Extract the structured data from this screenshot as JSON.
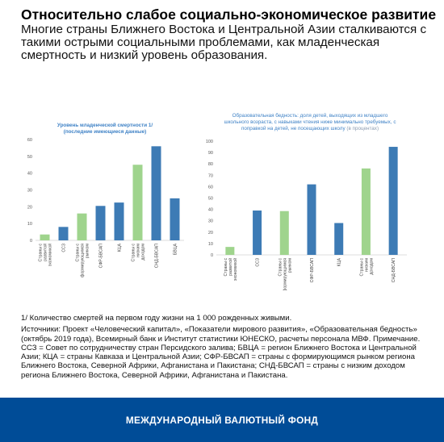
{
  "title": "Относительно слабое социально-экономическое развитие",
  "subtitle": "Многие страны Ближнего Востока и Центральной Азии сталкиваются с такими острыми социальными проблемами, как младенческая смертность и низкий уровень образования.",
  "colors": {
    "blue": "#3d7bb5",
    "green": "#9fd48d",
    "footer_bg": "#004c97",
    "chart_title": "#3f82c6"
  },
  "chart_data": [
    {
      "type": "bar",
      "title_lines": [
        "Уровень младенческой смертности 1/",
        "(последние имеющиеся данные)"
      ],
      "categories": [
        "Страны с развитой экономикой",
        "ССЗ",
        "Страны с формирующимся рынком",
        "СФР-БВСАП",
        "КЦА",
        "Страны с низким доходом",
        "СНД-БВСАП",
        "БВЦА"
      ],
      "values": [
        3.5,
        8,
        16,
        20.5,
        22.5,
        45,
        56,
        25
      ],
      "bar_colors": [
        "green",
        "blue",
        "green",
        "blue",
        "blue",
        "green",
        "blue",
        "blue"
      ],
      "yticks": [
        0,
        10,
        20,
        30,
        40,
        50,
        60
      ],
      "ylim": [
        0,
        60
      ],
      "xlabel": "",
      "ylabel": ""
    },
    {
      "type": "bar",
      "title_lines": [
        "Образовательная бедность: доля детей, выходящих из младшего",
        "школьного возраста, с навыками чтения ниже минимально требуемых, с",
        "поправкой на детей, не посещающих школу"
      ],
      "title_suffix": "(в процентах)",
      "categories": [
        "Страны с развитой экономикой",
        "ССЗ",
        "Страны с формирующимся рынком",
        "СФР-БВСАП",
        "КЦА",
        "Страны с низким доходом",
        "СНД-БВСАП"
      ],
      "values": [
        7,
        39,
        38.5,
        62,
        28,
        76,
        95
      ],
      "bar_colors": [
        "green",
        "blue",
        "green",
        "blue",
        "blue",
        "green",
        "blue"
      ],
      "yticks": [
        0,
        10,
        20,
        30,
        40,
        50,
        60,
        70,
        80,
        90,
        100
      ],
      "ylim": [
        0,
        100
      ],
      "xlabel": "",
      "ylabel": ""
    }
  ],
  "footnote": "1/ Количество смертей на первом году жизни на 1 000 рожденных живыми.",
  "sources": "Источники: Проект «Человеческий капитал», «Показатели мирового развития», «Образовательная бедность» (октябрь 2019 года), Всемирный банк и Институт статистики ЮНЕСКО, расчеты персонала МВФ. Примечание. ССЗ = Совет по сотрудничеству стран Персидского залива; БВЦА = регион Ближнего Востока и Центральной Азии; КЦА = страны Кавказа и Центральной Азии; СФР-БВСАП = страны с формирующимся рынком региона Ближнего Востока, Северной Африки, Афганистана и Пакистана; СНД-БВСАП = страны с низким доходом региона Ближнего Востока, Северной Африки, Афганистана и Пакистана.",
  "footer": "МЕЖДУНАРОДНЫЙ ВАЛЮТНЫЙ ФОНД"
}
